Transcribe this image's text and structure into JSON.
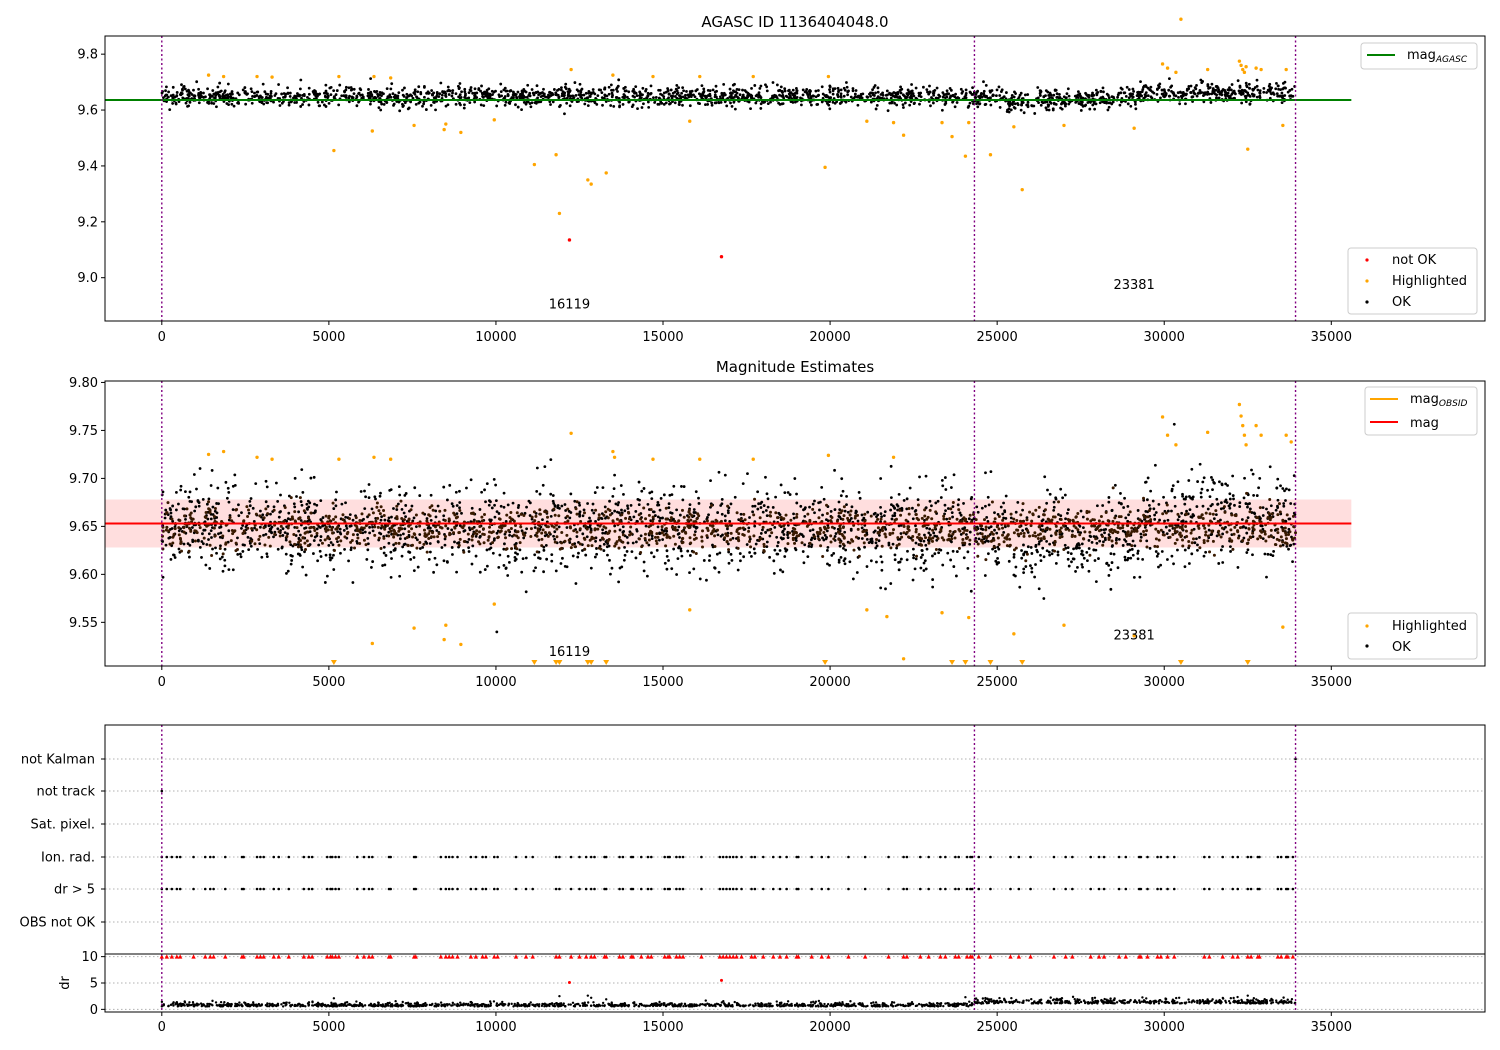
{
  "chart_data": [
    {
      "type": "scatter",
      "title": "AGASC ID 1136404048.0",
      "xlim": [
        -1700,
        39600
      ],
      "ylim": [
        8.845,
        9.865
      ],
      "xticks": [
        0,
        5000,
        10000,
        15000,
        20000,
        25000,
        30000,
        35000
      ],
      "yticks": [
        9.0,
        9.2,
        9.4,
        9.6,
        9.8
      ],
      "vlines": [
        0,
        24320,
        33930
      ],
      "annotations": [
        {
          "text": "16119",
          "x": 12200,
          "y": 8.89
        },
        {
          "text": "23381",
          "x": 29100,
          "y": 8.96
        }
      ],
      "lines": [
        {
          "name": "mag",
          "subscript": "AGASC",
          "y": 9.636,
          "x": [
            -1700,
            35600
          ],
          "color": "#008000"
        }
      ],
      "ok_band": {
        "x_start": 0,
        "x_end": 33930,
        "center": 9.648,
        "spread": 0.03
      },
      "series": [
        {
          "name": "not OK",
          "color": "#ff0000",
          "points": [
            [
              12200,
              9.135
            ],
            [
              16750,
              9.075
            ]
          ]
        },
        {
          "name": "Highlighted",
          "color": "#ffa500",
          "points": [
            [
              1400,
              9.725
            ],
            [
              1850,
              9.72
            ],
            [
              2850,
              9.72
            ],
            [
              3300,
              9.718
            ],
            [
              5150,
              9.455
            ],
            [
              5300,
              9.72
            ],
            [
              6300,
              9.525
            ],
            [
              6350,
              9.72
            ],
            [
              6850,
              9.715
            ],
            [
              7550,
              9.545
            ],
            [
              8450,
              9.53
            ],
            [
              8500,
              9.55
            ],
            [
              8950,
              9.52
            ],
            [
              9950,
              9.565
            ],
            [
              11150,
              9.405
            ],
            [
              11800,
              9.44
            ],
            [
              11900,
              9.23
            ],
            [
              12250,
              9.745
            ],
            [
              12750,
              9.35
            ],
            [
              12850,
              9.335
            ],
            [
              13300,
              9.375
            ],
            [
              13500,
              9.725
            ],
            [
              14700,
              9.72
            ],
            [
              15800,
              9.56
            ],
            [
              16100,
              9.72
            ],
            [
              17700,
              9.72
            ],
            [
              19850,
              9.395
            ],
            [
              19950,
              9.72
            ],
            [
              21100,
              9.56
            ],
            [
              21900,
              9.555
            ],
            [
              22200,
              9.51
            ],
            [
              23350,
              9.555
            ],
            [
              23650,
              9.505
            ],
            [
              24050,
              9.435
            ],
            [
              24150,
              9.555
            ],
            [
              24800,
              9.44
            ],
            [
              25500,
              9.54
            ],
            [
              25750,
              9.315
            ],
            [
              27000,
              9.545
            ],
            [
              29100,
              9.535
            ],
            [
              30500,
              9.925
            ],
            [
              29950,
              9.765
            ],
            [
              30100,
              9.75
            ],
            [
              30350,
              9.735
            ],
            [
              31300,
              9.745
            ],
            [
              32250,
              9.775
            ],
            [
              32300,
              9.76
            ],
            [
              32350,
              9.745
            ],
            [
              32400,
              9.735
            ],
            [
              32450,
              9.755
            ],
            [
              32500,
              9.46
            ],
            [
              32750,
              9.75
            ],
            [
              32900,
              9.745
            ],
            [
              33550,
              9.545
            ],
            [
              33650,
              9.745
            ]
          ]
        },
        {
          "name": "OK",
          "color": "#000000",
          "points": []
        }
      ],
      "legends": [
        {
          "position": "top-right",
          "entries": [
            {
              "label": "mag",
              "subscript": "AGASC",
              "kind": "line",
              "color": "#008000"
            }
          ]
        },
        {
          "position": "bottom-right",
          "entries": [
            {
              "label": "not OK",
              "kind": "marker",
              "color": "#ff0000"
            },
            {
              "label": "Highlighted",
              "kind": "marker",
              "color": "#ffa500"
            },
            {
              "label": "OK",
              "kind": "marker",
              "color": "#000000"
            }
          ]
        }
      ]
    },
    {
      "type": "scatter",
      "title": "Magnitude Estimates",
      "xlim": [
        -1700,
        39600
      ],
      "ylim": [
        9.5045,
        9.8015
      ],
      "xticks": [
        0,
        5000,
        10000,
        15000,
        20000,
        25000,
        30000,
        35000
      ],
      "yticks": [
        9.55,
        9.6,
        9.65,
        9.7,
        9.75,
        9.8
      ],
      "vlines": [
        0,
        24320,
        33930
      ],
      "annotations": [
        {
          "text": "16119",
          "x": 12200,
          "y": 9.515
        },
        {
          "text": "23381",
          "x": 29100,
          "y": 9.532
        }
      ],
      "lines": [
        {
          "name": "mag",
          "y": 9.653,
          "x": [
            -1700,
            35600
          ],
          "color": "#ff0000"
        }
      ],
      "shaded_bands": [
        {
          "x": [
            -1700,
            35600
          ],
          "y": [
            9.628,
            9.678
          ],
          "color": "#ff0000",
          "opacity": 0.13
        }
      ],
      "ok_band": {
        "x_start": 0,
        "x_end": 33930,
        "center": 9.648,
        "spread": 0.03
      },
      "series": [
        {
          "name": "Highlighted",
          "color": "#ffa500",
          "points": [
            [
              1400,
              9.725
            ],
            [
              1850,
              9.728
            ],
            [
              2850,
              9.722
            ],
            [
              3300,
              9.72
            ],
            [
              5300,
              9.72
            ],
            [
              6300,
              9.528
            ],
            [
              6350,
              9.722
            ],
            [
              6850,
              9.72
            ],
            [
              7550,
              9.544
            ],
            [
              8450,
              9.532
            ],
            [
              8500,
              9.547
            ],
            [
              8950,
              9.527
            ],
            [
              9950,
              9.569
            ],
            [
              12250,
              9.747
            ],
            [
              13500,
              9.728
            ],
            [
              13550,
              9.722
            ],
            [
              14700,
              9.72
            ],
            [
              15800,
              9.563
            ],
            [
              16100,
              9.72
            ],
            [
              17700,
              9.72
            ],
            [
              19950,
              9.724
            ],
            [
              21100,
              9.563
            ],
            [
              21700,
              9.556
            ],
            [
              21900,
              9.722
            ],
            [
              22200,
              9.512
            ],
            [
              23350,
              9.56
            ],
            [
              24150,
              9.555
            ],
            [
              25500,
              9.538
            ],
            [
              27000,
              9.547
            ],
            [
              29100,
              9.536
            ],
            [
              29950,
              9.764
            ],
            [
              30100,
              9.745
            ],
            [
              30350,
              9.735
            ],
            [
              31300,
              9.748
            ],
            [
              32250,
              9.777
            ],
            [
              32300,
              9.765
            ],
            [
              32350,
              9.755
            ],
            [
              32400,
              9.745
            ],
            [
              32450,
              9.735
            ],
            [
              32750,
              9.755
            ],
            [
              32900,
              9.745
            ],
            [
              33550,
              9.545
            ],
            [
              33650,
              9.745
            ],
            [
              33800,
              9.738
            ]
          ]
        },
        {
          "name": "OK",
          "color": "#000000",
          "points": []
        },
        {
          "name": "mag",
          "subscript": "OBSID",
          "color": "#ffa500",
          "kind": "line",
          "points": []
        }
      ],
      "offscale_markers": {
        "color": "#ffa500",
        "y": 9.5045,
        "x": [
          5150,
          11150,
          11800,
          11900,
          12750,
          12850,
          13300,
          19850,
          23650,
          24050,
          24800,
          25750,
          30500,
          32500
        ]
      },
      "legends": [
        {
          "position": "top-right",
          "entries": [
            {
              "label": "mag",
              "subscript": "OBSID",
              "kind": "line",
              "color": "#ffa500"
            },
            {
              "label": "mag",
              "kind": "line",
              "color": "#ff0000"
            }
          ]
        },
        {
          "position": "bottom-right",
          "entries": [
            {
              "label": "Highlighted",
              "kind": "marker",
              "color": "#ffa500"
            },
            {
              "label": "OK",
              "kind": "marker",
              "color": "#000000"
            }
          ]
        }
      ]
    },
    {
      "type": "scatter",
      "title": "",
      "xlim": [
        -1700,
        39600
      ],
      "categories": [
        "not Kalman",
        "not track",
        "Sat. pixel.",
        "Ion. rad.",
        "dr > 5",
        "OBS not OK"
      ],
      "vlines": [
        0,
        24320,
        33930
      ],
      "flag_x": [
        0,
        150,
        300,
        450,
        550,
        950,
        1300,
        1450,
        1550,
        1900,
        2400,
        2450,
        2850,
        2950,
        3050,
        3350,
        3500,
        3800,
        4250,
        4400,
        4500,
        4950,
        5050,
        5100,
        5200,
        5300,
        5850,
        6050,
        6200,
        6300,
        6800,
        6850,
        7550,
        7600,
        8350,
        8500,
        8600,
        8700,
        8850,
        9250,
        9400,
        9600,
        9700,
        9950,
        10050,
        10600,
        10900,
        11100,
        11800,
        11900,
        12250,
        12500,
        12700,
        12850,
        12950,
        13250,
        13300,
        13700,
        13800,
        14050,
        14100,
        14350,
        14550,
        14650,
        15050,
        15150,
        15200,
        15400,
        15500,
        15600,
        16150,
        16700,
        16800,
        16900,
        17000,
        17100,
        17200,
        17350,
        17650,
        17750,
        18000,
        18300,
        18500,
        18700,
        19000,
        19050,
        19450,
        19750,
        19950,
        20550,
        21050,
        21750,
        22200,
        22300,
        22700,
        22950,
        23300,
        23450,
        23750,
        23850,
        24100,
        24200,
        24250,
        24450,
        24800,
        25400,
        25650,
        26000,
        26700,
        27050,
        27250,
        27800,
        28050,
        28200,
        28650,
        28850,
        29250,
        29300,
        29500,
        29800,
        29900,
        30100,
        30300,
        31200,
        31350,
        31750,
        32050,
        32200,
        32500,
        32600,
        32800,
        32850,
        33400,
        33500,
        33650,
        33700,
        33850
      ],
      "flags": {
        "Ion. rad.": "flag_x",
        "dr > 5": "flag_x",
        "not track": [
          [
            0
          ]
        ],
        "not Kalman": [
          [
            33930
          ]
        ]
      }
    },
    {
      "type": "scatter",
      "title": "",
      "ylabel": "dr",
      "xlim": [
        -1700,
        39600
      ],
      "ylim": [
        -0.5,
        10.5
      ],
      "xticks": [
        0,
        5000,
        10000,
        15000,
        20000,
        25000,
        30000,
        35000
      ],
      "yticks": [
        0,
        5,
        10
      ],
      "vlines": [
        0,
        24320,
        33930
      ],
      "series": [
        {
          "name": "dr > 5",
          "color": "#ff0000",
          "marker": "triangle-up",
          "y": 10,
          "x_ref": "flag_x"
        },
        {
          "name": "outliers",
          "color": "#ff0000",
          "points": [
            [
              12200,
              5.1
            ],
            [
              16750,
              5.5
            ]
          ]
        },
        {
          "name": "dr",
          "color": "#000000",
          "points": [
            [
              5150,
              2.1
            ],
            [
              11900,
              2.5
            ],
            [
              12750,
              2.6
            ],
            [
              12850,
              2.2
            ],
            [
              13300,
              1.9
            ],
            [
              24050,
              2.3
            ],
            [
              32500,
              2.6
            ]
          ]
        }
      ]
    }
  ]
}
